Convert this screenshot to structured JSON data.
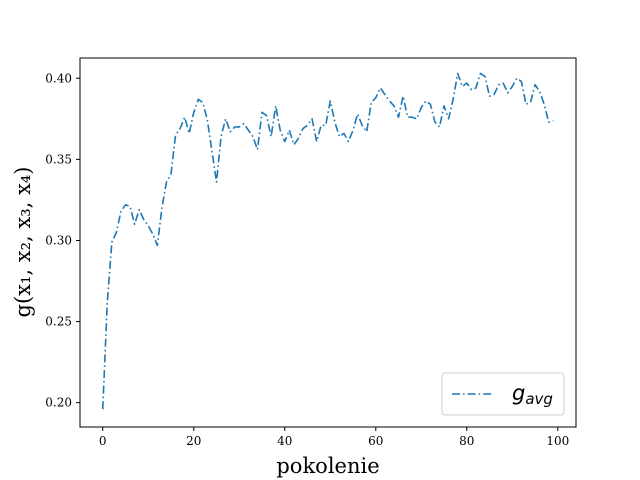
{
  "chart_data": {
    "type": "line",
    "xlabel": "pokolenie",
    "ylabel": "g(x₁, x₂, x₃, x₄)",
    "xlim": [
      -5,
      104
    ],
    "ylim": [
      0.185,
      0.4125
    ],
    "xticks": [
      0,
      20,
      40,
      60,
      80,
      100
    ],
    "yticks": [
      0.2,
      0.25,
      0.3,
      0.35,
      0.4
    ],
    "xtick_labels": [
      "0",
      "20",
      "40",
      "60",
      "80",
      "100"
    ],
    "ytick_labels": [
      "0.20",
      "0.25",
      "0.30",
      "0.35",
      "0.40"
    ],
    "grid": false,
    "legend_position": "lower-right",
    "series": [
      {
        "name": "g_avg",
        "legend_main": "g",
        "legend_sub": "avg",
        "color": "#1f77b4",
        "linestyle": "dashdot",
        "x": [
          0,
          1,
          2,
          3,
          4,
          5,
          6,
          7,
          8,
          9,
          10,
          11,
          12,
          13,
          14,
          15,
          16,
          17,
          18,
          19,
          20,
          21,
          22,
          23,
          24,
          25,
          26,
          27,
          28,
          29,
          30,
          31,
          32,
          33,
          34,
          35,
          36,
          37,
          38,
          39,
          40,
          41,
          42,
          43,
          44,
          45,
          46,
          47,
          48,
          49,
          50,
          51,
          52,
          53,
          54,
          55,
          56,
          57,
          58,
          59,
          60,
          61,
          62,
          63,
          64,
          65,
          66,
          67,
          68,
          69,
          70,
          71,
          72,
          73,
          74,
          75,
          76,
          77,
          78,
          79,
          80,
          81,
          82,
          83,
          84,
          85,
          86,
          87,
          88,
          89,
          90,
          91,
          92,
          93,
          94,
          95,
          96,
          97,
          98,
          99
        ],
        "y": [
          0.196,
          0.262,
          0.299,
          0.305,
          0.318,
          0.322,
          0.321,
          0.31,
          0.319,
          0.313,
          0.309,
          0.304,
          0.297,
          0.32,
          0.336,
          0.341,
          0.365,
          0.369,
          0.376,
          0.366,
          0.379,
          0.387,
          0.385,
          0.374,
          0.355,
          0.336,
          0.364,
          0.375,
          0.367,
          0.37,
          0.37,
          0.372,
          0.368,
          0.364,
          0.356,
          0.379,
          0.377,
          0.364,
          0.383,
          0.368,
          0.361,
          0.368,
          0.359,
          0.363,
          0.369,
          0.371,
          0.375,
          0.361,
          0.371,
          0.371,
          0.386,
          0.373,
          0.364,
          0.366,
          0.361,
          0.368,
          0.378,
          0.371,
          0.367,
          0.385,
          0.388,
          0.394,
          0.39,
          0.386,
          0.383,
          0.376,
          0.389,
          0.376,
          0.376,
          0.375,
          0.382,
          0.386,
          0.384,
          0.373,
          0.37,
          0.383,
          0.375,
          0.387,
          0.403,
          0.395,
          0.397,
          0.393,
          0.394,
          0.403,
          0.401,
          0.389,
          0.39,
          0.396,
          0.397,
          0.391,
          0.395,
          0.4,
          0.398,
          0.384,
          0.385,
          0.396,
          0.392,
          0.384,
          0.373,
          0.374
        ]
      }
    ]
  }
}
